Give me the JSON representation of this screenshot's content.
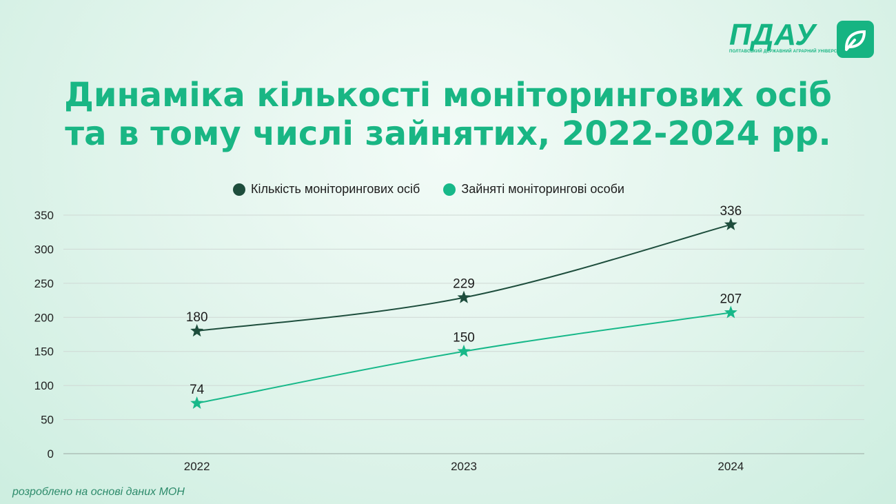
{
  "logo": {
    "text": "ПДАУ",
    "subtitle": "ПОЛТАВСЬКИЙ ДЕРЖАВНИЙ АГРАРНИЙ УНІВЕРСИТЕТ"
  },
  "title": {
    "line1": "Динаміка кількості моніторингових осіб",
    "line2": "та в тому числі зайнятих, 2022-2024 рр."
  },
  "footnote": "розроблено на основі даних МОН",
  "chart_data": {
    "type": "line",
    "categories": [
      "2022",
      "2023",
      "2024"
    ],
    "series": [
      {
        "name": "Кількість моніторингових осіб",
        "values": [
          180,
          229,
          336
        ],
        "color": "#1d4d3c"
      },
      {
        "name": "Зайняті моніторингові особи",
        "values": [
          74,
          150,
          207
        ],
        "color": "#17b889"
      }
    ],
    "ylim": [
      0,
      350
    ],
    "yticks": [
      0,
      50,
      100,
      150,
      200,
      250,
      300,
      350
    ],
    "grid": true,
    "legend": "top",
    "marker": "star",
    "data_labels": true
  }
}
